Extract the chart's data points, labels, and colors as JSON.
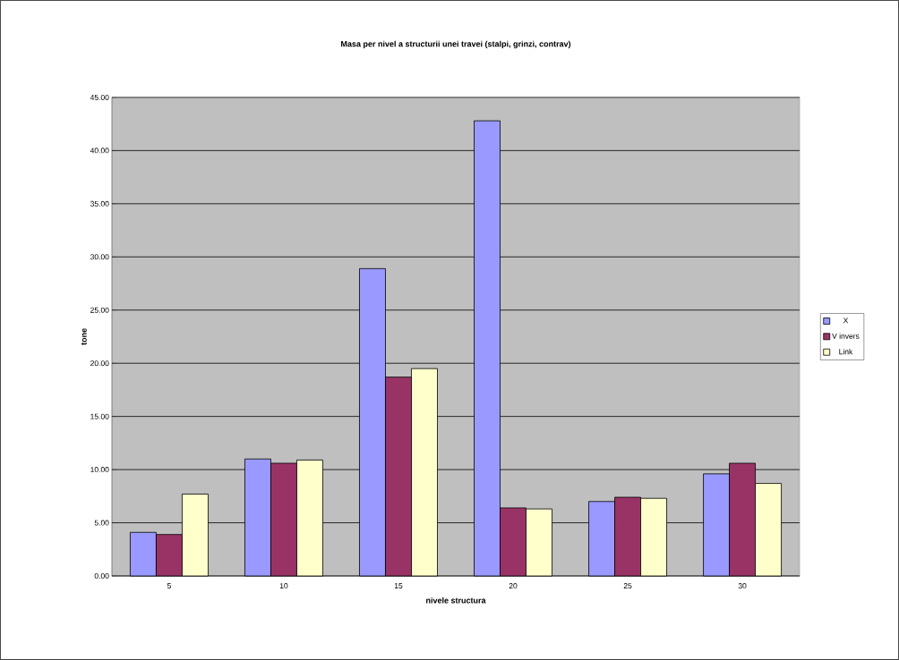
{
  "chart_data": {
    "type": "bar",
    "title": "Masa per nivel a structurii unei travei (stalpi, grinzi, contrav)",
    "xlabel": "nivele structura",
    "ylabel": "tone",
    "categories": [
      "5",
      "10",
      "15",
      "20",
      "25",
      "30"
    ],
    "series": [
      {
        "name": "X",
        "color": "#9999ff",
        "values": [
          4.1,
          11.0,
          28.9,
          42.8,
          7.0,
          9.6
        ]
      },
      {
        "name": "V invers",
        "color": "#993366",
        "values": [
          3.9,
          10.6,
          18.7,
          6.4,
          7.4,
          10.6
        ]
      },
      {
        "name": "Link",
        "color": "#ffffcc",
        "values": [
          7.7,
          10.9,
          19.5,
          6.3,
          7.3,
          8.7
        ]
      }
    ],
    "ylim": [
      0,
      45
    ],
    "yticks": [
      {
        "value": 0,
        "label": "0.00"
      },
      {
        "value": 5,
        "label": "5.00"
      },
      {
        "value": 10,
        "label": "10.00"
      },
      {
        "value": 15,
        "label": "15.00"
      },
      {
        "value": 20,
        "label": "20.00"
      },
      {
        "value": 25,
        "label": "25.00"
      },
      {
        "value": 30,
        "label": "30.00"
      },
      {
        "value": 35,
        "label": "35.00"
      },
      {
        "value": 40,
        "label": "40.00"
      },
      {
        "value": 45,
        "label": "45.00"
      }
    ],
    "grid": "y",
    "legend": "right"
  }
}
